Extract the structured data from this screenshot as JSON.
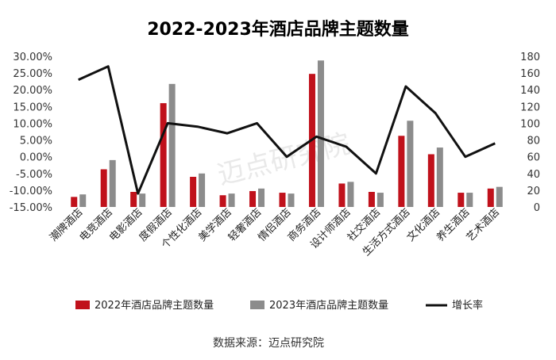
{
  "chart_data": {
    "type": "bar",
    "title": "2022-2023年酒店品牌主题数量",
    "categories": [
      "潮牌酒店",
      "电竞酒店",
      "电影酒店",
      "度假酒店",
      "个性化酒店",
      "美学酒店",
      "轻奢酒店",
      "情侣酒店",
      "商务酒店",
      "设计师酒店",
      "社交酒店",
      "生活方式酒店",
      "文化酒店",
      "养生酒店",
      "艺术酒店"
    ],
    "series": [
      {
        "name": "2022年酒店品牌主题数量",
        "axis": "right",
        "color": "#c0111b",
        "values": [
          12,
          45,
          18,
          124,
          36,
          14,
          19,
          17,
          159,
          28,
          18,
          85,
          63,
          17,
          22
        ]
      },
      {
        "name": "2023年酒店品牌主题数量",
        "axis": "right",
        "color": "#8c8c8c",
        "values": [
          15,
          56,
          16,
          147,
          40,
          16,
          22,
          16,
          175,
          30,
          17,
          103,
          71,
          17,
          24
        ]
      },
      {
        "name": "增长率",
        "type": "line",
        "axis": "left",
        "color": "#111111",
        "values": [
          23,
          27,
          -11,
          10,
          9,
          7,
          10,
          0,
          6,
          3,
          -5,
          21,
          13,
          0,
          4
        ]
      }
    ],
    "y_left": {
      "min": -15,
      "max": 30,
      "step": 5,
      "ticks": [
        "-15.00%",
        "-10.00%",
        "-5.00%",
        "0.00%",
        "5.00%",
        "10.00%",
        "15.00%",
        "20.00%",
        "25.00%",
        "30.00%"
      ]
    },
    "y_right": {
      "min": 0,
      "max": 180,
      "step": 20,
      "ticks": [
        "0",
        "20",
        "40",
        "60",
        "80",
        "100",
        "120",
        "140",
        "160",
        "180"
      ]
    },
    "grid": false,
    "legend_position": "bottom"
  },
  "source": "数据来源：迈点研究院",
  "watermark": "迈点研究院"
}
